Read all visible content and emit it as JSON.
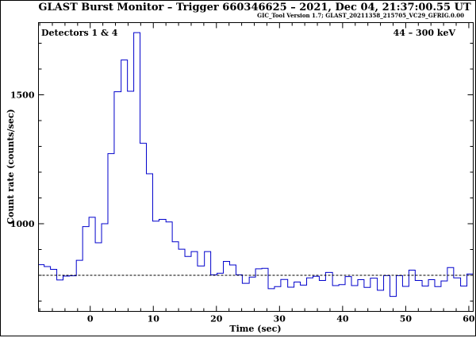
{
  "chart_data": {
    "type": "line",
    "title": "GLAST Burst Monitor  –  Trigger 660346625  –  2021, Dec 04, 21:37:00.55 UT",
    "subtitle": "GIC_Tool Version 1.7; GLAST_20211358_215705_VC29_GFRIG.0.00",
    "xlabel": "Time (sec)",
    "ylabel": "Count rate (counts/sec)",
    "annotation_left": "Detectors 1 & 4",
    "annotation_right": "44 – 300 keV",
    "xlim": [
      -8.2,
      60.7
    ],
    "ylim": [
      660,
      1780
    ],
    "x_ticks": [
      0,
      10,
      20,
      30,
      40,
      50,
      60
    ],
    "y_ticks": [
      1000,
      1500
    ],
    "background_level": 800,
    "bin_width": 1.024,
    "bin_edges": [
      -8.2,
      -7.3,
      -6.3,
      -5.3,
      -4.3,
      -3.3,
      -2.2,
      -1.2,
      -0.2,
      0.8,
      1.8,
      2.8,
      3.8,
      4.9,
      5.9,
      6.9,
      7.9,
      8.9,
      9.9,
      10.9,
      12.0,
      13.0,
      14.0,
      15.0,
      16.0,
      17.0,
      18.1,
      19.1,
      20.1,
      21.1,
      22.1,
      23.1,
      24.1,
      25.2,
      26.2,
      27.2,
      28.2,
      29.2,
      30.2,
      31.3,
      32.3,
      33.3,
      34.3,
      35.3,
      36.3,
      37.3,
      38.4,
      39.4,
      40.4,
      41.4,
      42.4,
      43.4,
      44.4,
      45.5,
      46.5,
      47.5,
      48.5,
      49.5,
      50.5,
      51.5,
      52.6,
      53.6,
      54.6,
      55.6,
      56.6,
      57.6,
      58.7,
      59.7,
      60.7
    ],
    "values": [
      841,
      834,
      823,
      782,
      797,
      798,
      858,
      989,
      1025,
      926,
      1000,
      1272,
      1512,
      1635,
      1514,
      1741,
      1312,
      1194,
      1010,
      1017,
      1007,
      930,
      901,
      873,
      892,
      836,
      892,
      802,
      808,
      854,
      840,
      802,
      769,
      793,
      825,
      827,
      748,
      756,
      784,
      754,
      774,
      762,
      790,
      796,
      780,
      811,
      760,
      764,
      795,
      760,
      783,
      753,
      789,
      742,
      799,
      718,
      799,
      757,
      820,
      780,
      758,
      783,
      756,
      778,
      830,
      790,
      758,
      805,
      763
    ],
    "colors": {
      "line": "#0000cc",
      "axes": "#000000",
      "background": "#ffffff"
    },
    "grid": false,
    "legend": "none"
  }
}
